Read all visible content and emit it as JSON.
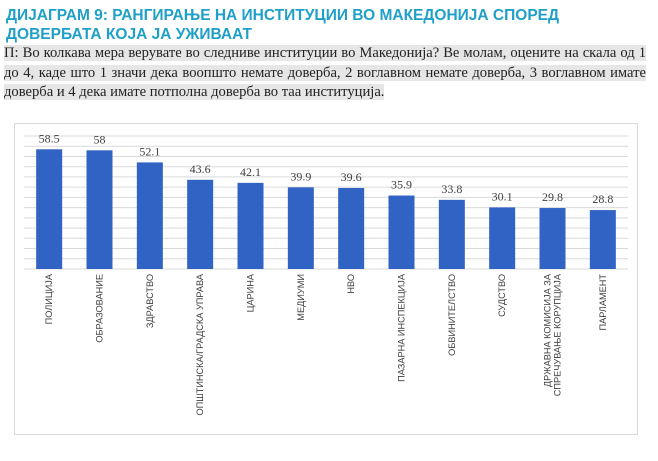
{
  "title": "ДИЈАГРАМ 9: РАНГИРАЊЕ НА ИНСТИТУЦИИ ВО МАКЕДОНИЈА СПОРЕД ДОВЕРБАТА КОЈА ЈА УЖИВААТ",
  "question": "П: Во колкава мера верувате во следниве институции во Македонија? Ве молам, оцените на скала од 1 до 4, каде што 1 значи дека воопшто немате доверба, 2 воглавном немате доверба, 3 воглавном имате доверба и 4 дека имате потполна доверба во таа институција.",
  "colors": {
    "title": "#1fa0c8",
    "bar": "#3063c4",
    "grid": "#d9d9d9"
  },
  "chart_data": {
    "type": "bar",
    "title": "",
    "xlabel": "",
    "ylabel": "",
    "ylim": [
      0,
      65
    ],
    "grid": true,
    "categories": [
      [
        "ПОЛИЦИЈА"
      ],
      [
        "ОБРАЗОВАНИЕ"
      ],
      [
        "ЗДРАВСТВО"
      ],
      [
        "ОПШТИНСКА/ГРАДСКА УПРАВА"
      ],
      [
        "ЦАРИНА"
      ],
      [
        "МЕДИУМИ"
      ],
      [
        "НВО"
      ],
      [
        "ПАЗАРНА ИНСПЕКЦИЈА"
      ],
      [
        "ОБВИНИТЕЛСТВО"
      ],
      [
        "СУДСТВО"
      ],
      [
        "ДРЖАВНА КОМИСИЈА ЗА",
        "СПРЕЧУВАЊЕ КОРУПЦИЈА"
      ],
      [
        "ПАРЛАМЕНТ"
      ]
    ],
    "values": [
      58.5,
      58,
      52.1,
      43.6,
      42.1,
      39.9,
      39.6,
      35.9,
      33.8,
      30.1,
      29.8,
      28.8
    ]
  }
}
